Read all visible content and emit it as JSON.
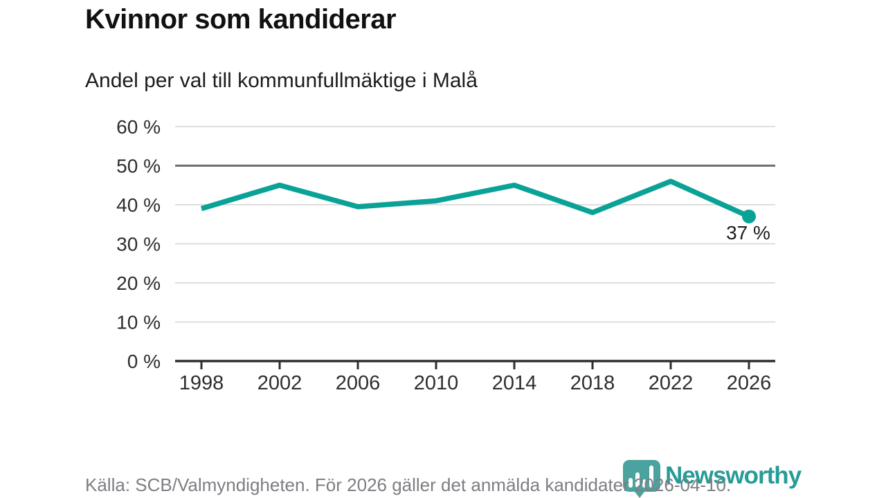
{
  "accent_color": "#0aa296",
  "chart_data": {
    "type": "line",
    "title": "Kvinnor som kandiderar",
    "subtitle": "Andel per val till kommunfullmäktige i Malå",
    "categories": [
      1998,
      2002,
      2006,
      2010,
      2014,
      2018,
      2022,
      2026
    ],
    "values": [
      39,
      45,
      39.5,
      41,
      45,
      38,
      46,
      37
    ],
    "unit": "%",
    "ylim": [
      0,
      60
    ],
    "ytick_step": 10,
    "ytick_suffix": " %",
    "highlight_gridline": 50,
    "grid": true,
    "legend_position": "none",
    "end_label": "37 %",
    "line_color": "#0aa296",
    "grid_color": "#dedede",
    "highlight_grid_color": "#6d6d74",
    "axis_color": "#2e2e2e",
    "tick_label_color": "#2e2e2e"
  },
  "footer": {
    "source": "Källa: SCB/Valmyndigheten. För 2026 gäller det anmälda kandidater 2026-04-10.",
    "brand": "Newsworthy",
    "logo_icon": "bar-chart-pin-icon",
    "logo_color": "#4ba39f"
  }
}
